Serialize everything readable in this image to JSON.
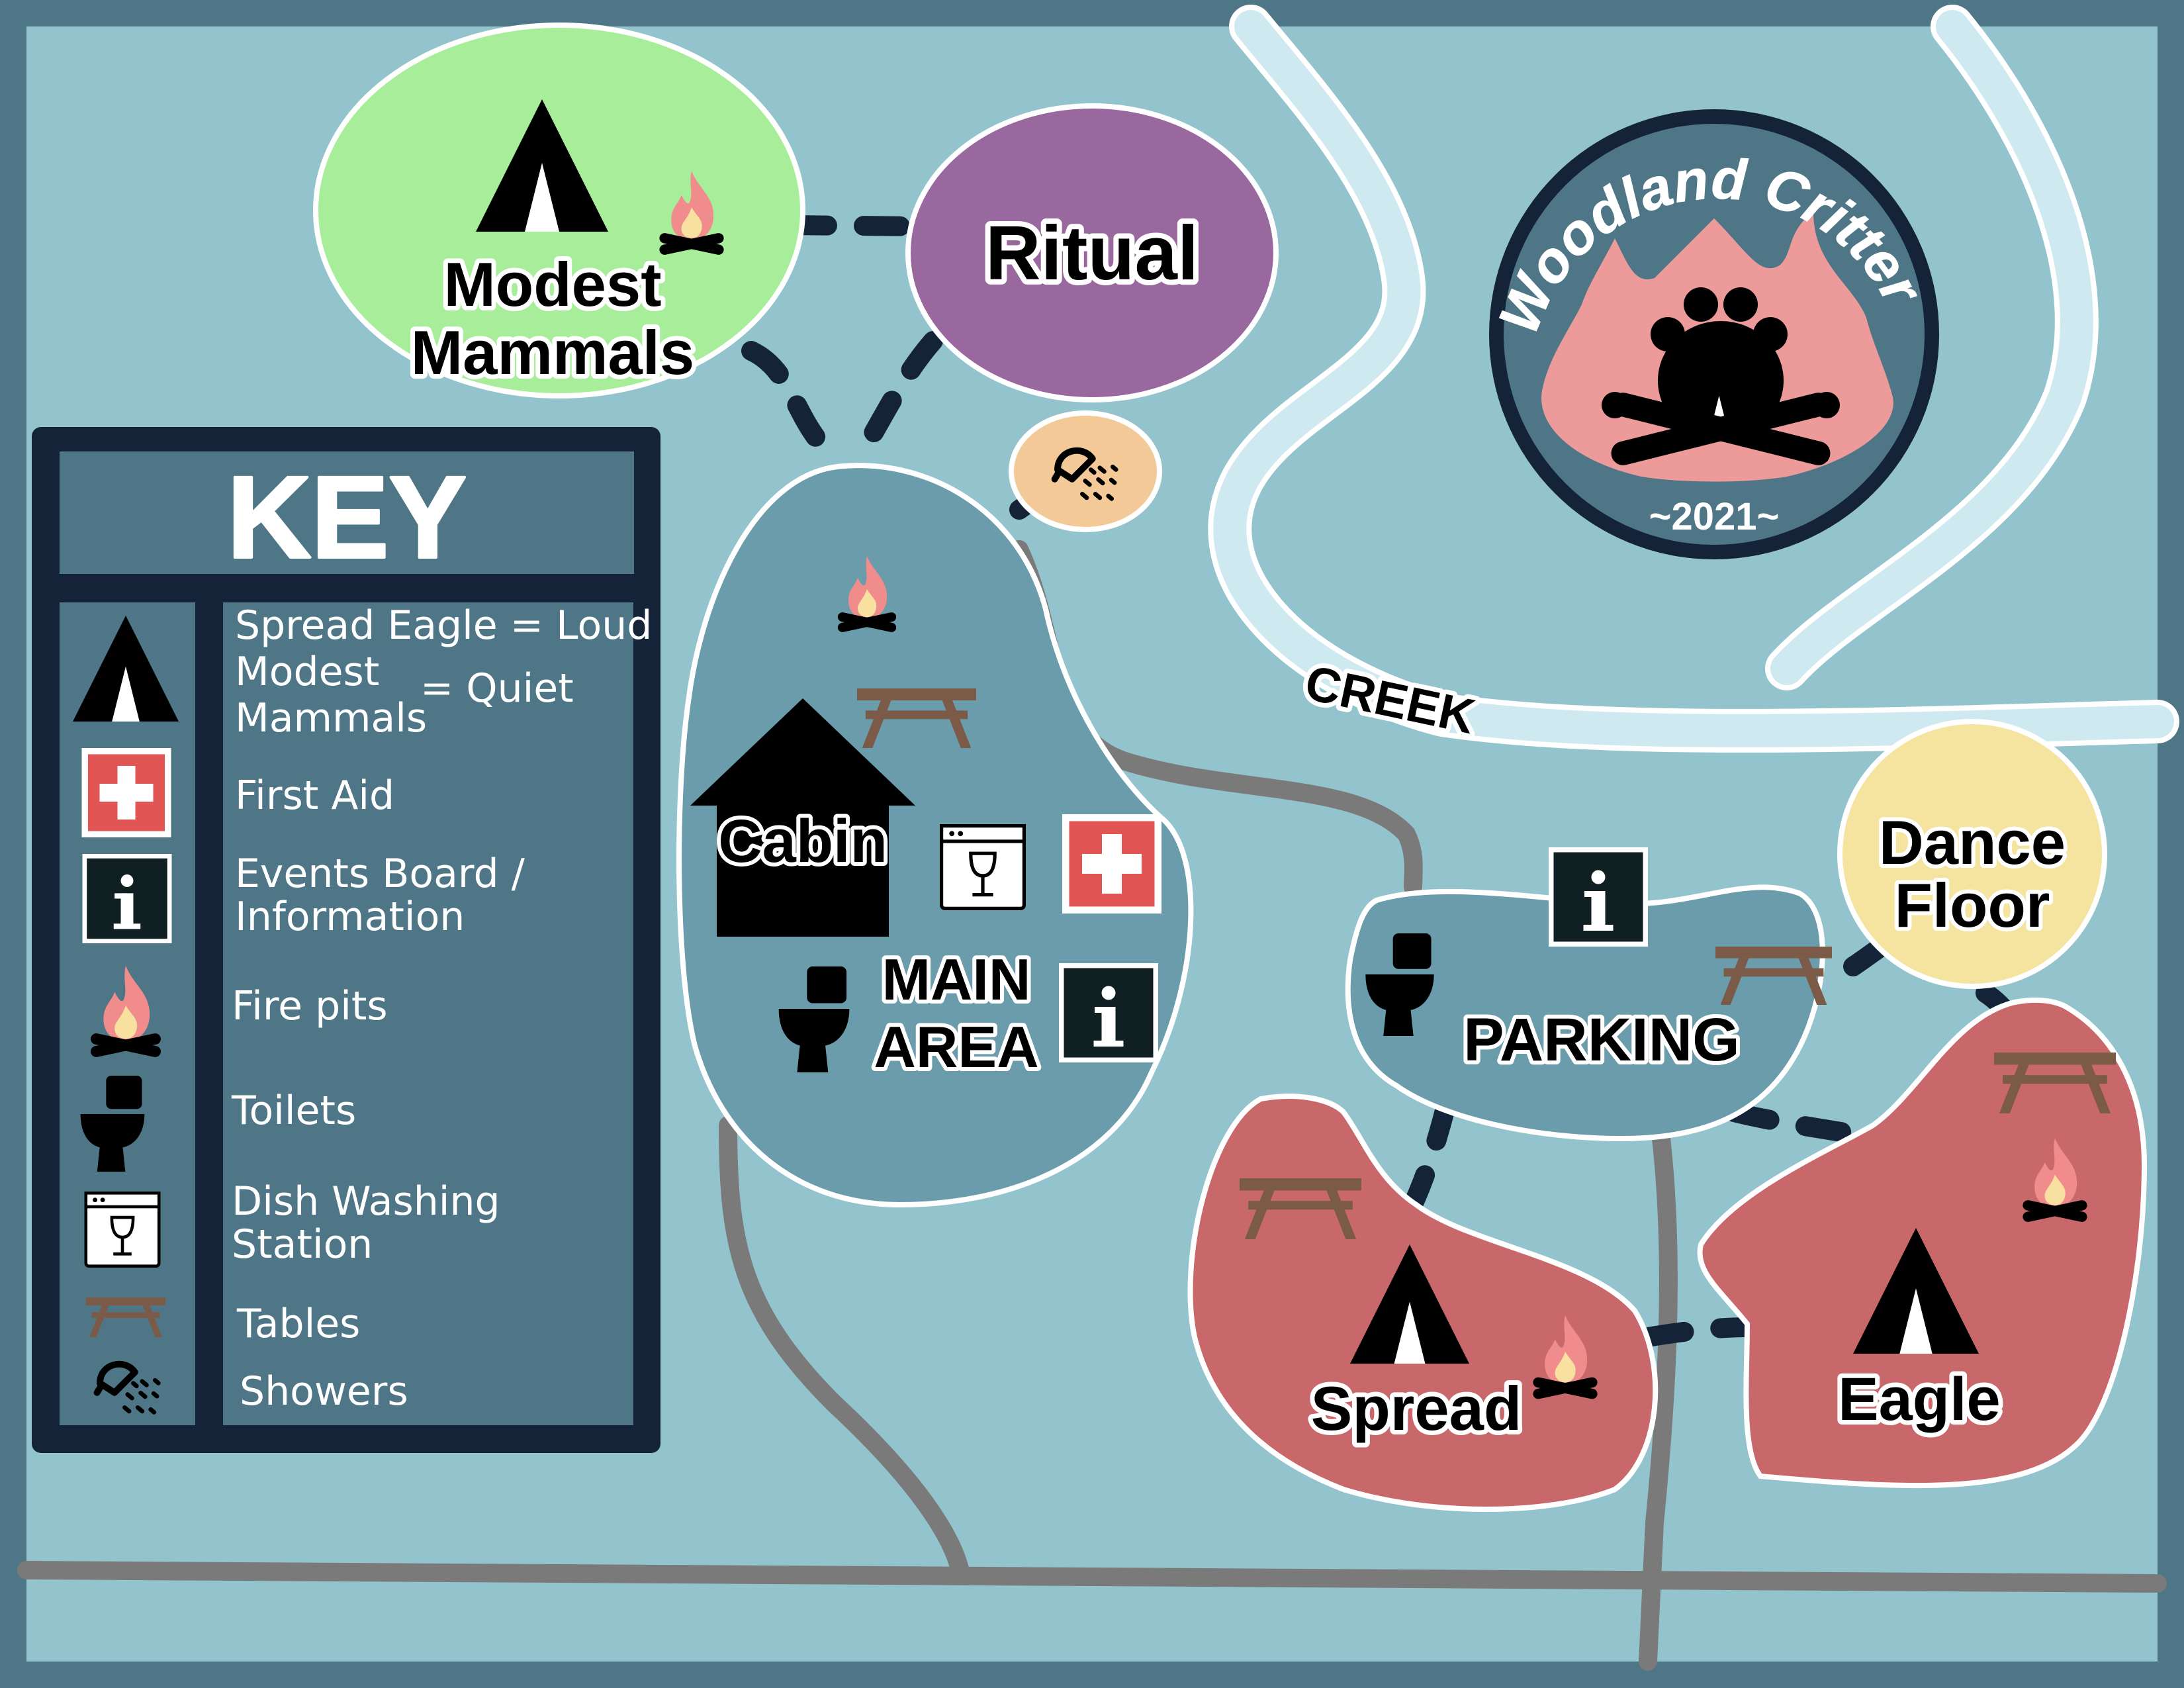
{
  "map": {
    "colors": {
      "frame": "#4e7686",
      "ground": "#93c3cc",
      "creek": "#cfe9f1",
      "road": "#7a7a7a",
      "quiet_zone": "#a8ee9a",
      "ritual_zone": "#98689e",
      "main_zone": "#6a9cab",
      "loud_zone": "#c9686a",
      "dance_zone": "#f5e4a0",
      "shower_zone": "#f3c998",
      "key_panel": "#4e7686",
      "key_border": "#142338",
      "path_dash": "#142338",
      "flame": "#f08c8c",
      "flame_core": "#f7e0a0",
      "table": "#7b5a48"
    },
    "areas": {
      "modest_mammals": {
        "label_line1": "Modest",
        "label_line2": "Mammals"
      },
      "ritual": {
        "label": "Ritual"
      },
      "main_area": {
        "label_line1": "MAIN",
        "label_line2": "AREA",
        "cabin_label": "Cabin"
      },
      "parking": {
        "label": "PARKING"
      },
      "dance_floor": {
        "label_line1": "Dance",
        "label_line2": "Floor"
      },
      "spread": {
        "label": "Spread"
      },
      "eagle": {
        "label": "Eagle"
      },
      "creek": {
        "label": "CREEK"
      }
    },
    "logo": {
      "arc_text": "Woodland Critters",
      "year": "~2021~"
    },
    "key": {
      "title": "KEY",
      "items": [
        {
          "icon": "tent-icon",
          "line1": "Spread Eagle = Loud",
          "line2": "Modest",
          "line3": "Mammals",
          "quiet": "= Quiet"
        },
        {
          "icon": "first-aid-icon",
          "line1": "First Aid"
        },
        {
          "icon": "info-icon",
          "line1": "Events Board /",
          "line2": "Information"
        },
        {
          "icon": "fire-pit-icon",
          "line1": "Fire pits"
        },
        {
          "icon": "toilet-icon",
          "line1": "Toilets"
        },
        {
          "icon": "dish-washing-icon",
          "line1": "Dish Washing",
          "line2": "Station"
        },
        {
          "icon": "table-icon",
          "line1": "Tables"
        },
        {
          "icon": "shower-icon",
          "line1": "Showers"
        }
      ]
    }
  }
}
